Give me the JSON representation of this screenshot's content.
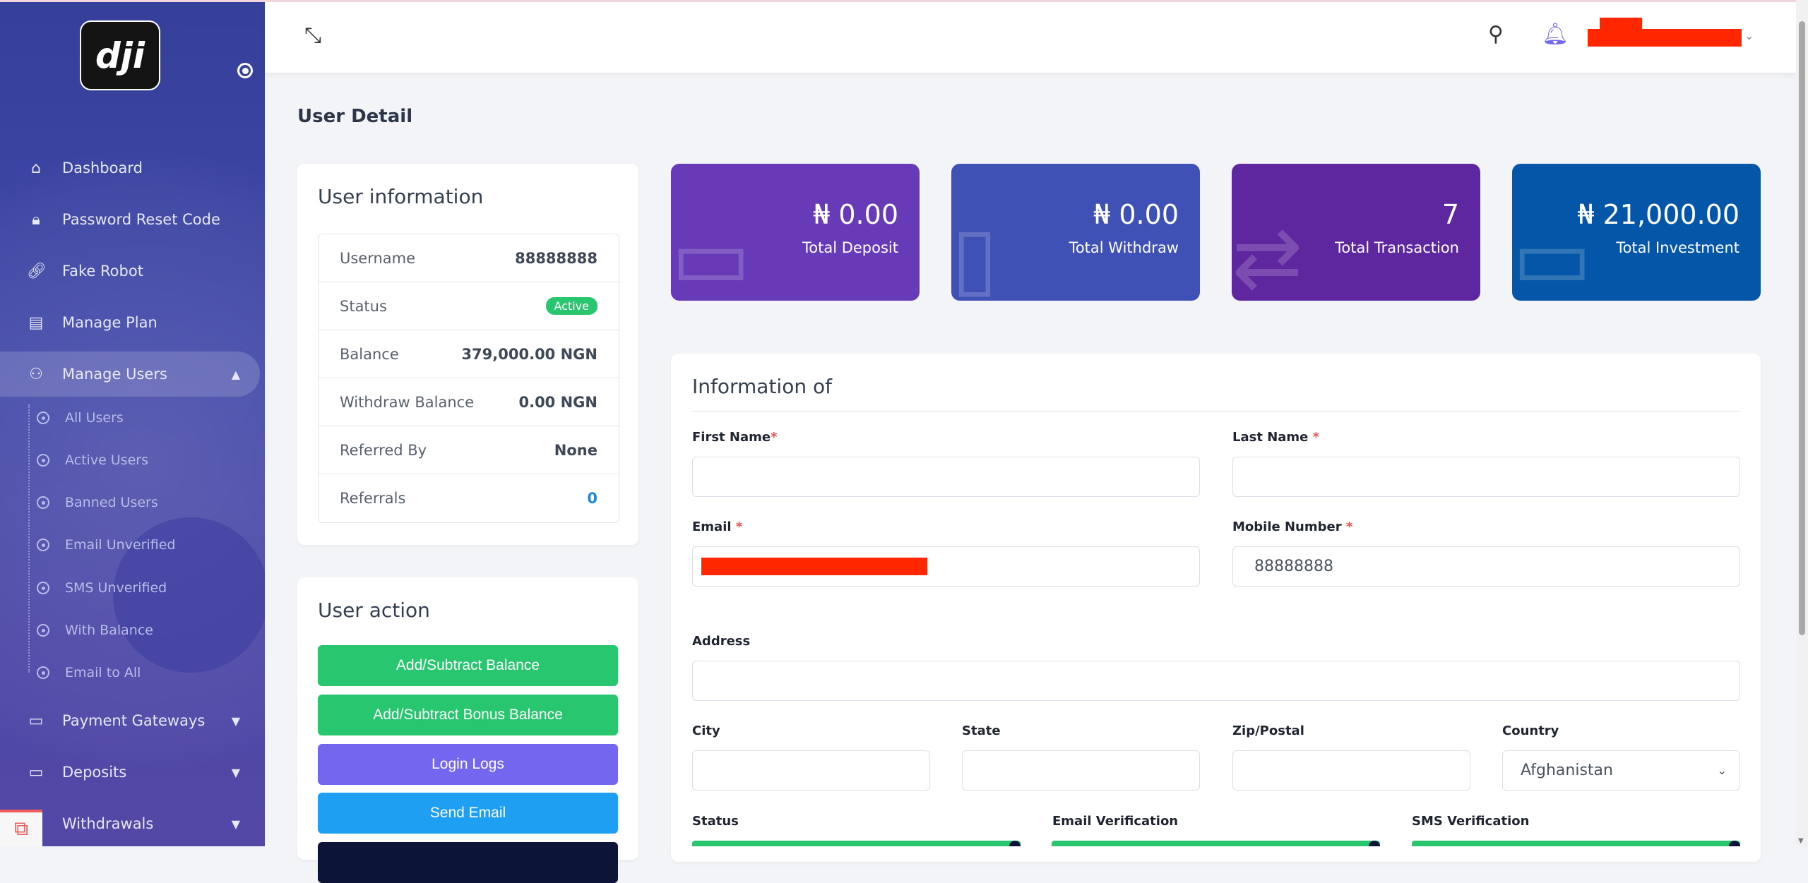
{
  "sidebar": {
    "logo_text": "dji",
    "items": [
      {
        "label": "Dashboard",
        "icon": "home-icon"
      },
      {
        "label": "Password Reset Code",
        "icon": "lock-icon"
      },
      {
        "label": "Fake Robot",
        "icon": "link-icon"
      },
      {
        "label": "Manage Plan",
        "icon": "plan-icon"
      },
      {
        "label": "Manage Users",
        "icon": "users-icon"
      }
    ],
    "sub_items": [
      "All Users",
      "Active Users",
      "Banned Users",
      "Email Unverified",
      "SMS Unverified",
      "With Balance",
      "Email to All"
    ],
    "bottom_items": [
      {
        "label": "Payment Gateways",
        "icon": "credit-card-icon"
      },
      {
        "label": "Deposits",
        "icon": "credit-card-icon"
      },
      {
        "label": "Withdrawals",
        "icon": "withdraw-icon"
      }
    ]
  },
  "page_title": "User Detail",
  "user_info": {
    "title": "User information",
    "rows": [
      {
        "label": "Username",
        "value": "88888888"
      },
      {
        "label": "Status",
        "value": "Active"
      },
      {
        "label": "Balance",
        "value": "379,000.00 NGN"
      },
      {
        "label": "Withdraw Balance",
        "value": "0.00 NGN"
      },
      {
        "label": "Referred By",
        "value": "None"
      },
      {
        "label": "Referrals",
        "value": "0"
      }
    ]
  },
  "user_action": {
    "title": "User action",
    "buttons": [
      "Add/Subtract Balance",
      "Add/Subtract Bonus Balance",
      "Login Logs",
      "Send Email"
    ]
  },
  "stats": [
    {
      "value": "₦ 0.00",
      "label": "Total Deposit",
      "color": "#673ab7"
    },
    {
      "value": "₦ 0.00",
      "label": "Total Withdraw",
      "color": "#3f51b5"
    },
    {
      "value": "7",
      "label": "Total Transaction",
      "color": "#5e279f"
    },
    {
      "value": "₦ 21,000.00",
      "label": "Total Investment",
      "color": "#0457a8"
    }
  ],
  "form": {
    "title": "Information of",
    "first_name": "First Name",
    "last_name": "Last Name",
    "email": "Email",
    "mobile": "Mobile Number",
    "mobile_value": "88888888",
    "address": "Address",
    "city": "City",
    "state": "State",
    "zip": "Zip/Postal",
    "country": "Country",
    "country_value": "Afghanistan",
    "status": "Status",
    "email_verification": "Email Verification",
    "sms_verification": "SMS Verification",
    "required_mark": "*"
  }
}
